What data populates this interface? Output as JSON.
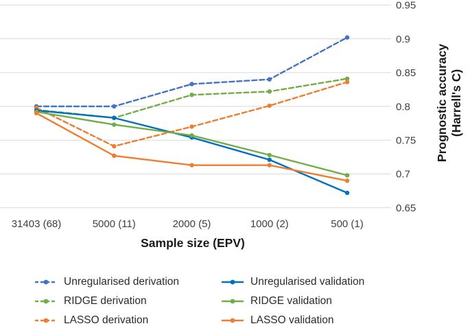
{
  "figure": {
    "background": "#ffffff"
  },
  "chart_data": {
    "type": "line",
    "title": "",
    "xlabel": "Sample size (EPV)",
    "ylabel_line1": "Prognostic accuracy",
    "ylabel_line2": "(Harrell's C)",
    "categories": [
      "31403 (68)",
      "5000 (11)",
      "2000 (5)",
      "1000 (2)",
      "500 (1)"
    ],
    "series": [
      {
        "name": "Unregularised derivation",
        "style": "dashed",
        "color": "#4472C4",
        "values": [
          0.8,
          0.8,
          0.833,
          0.84,
          0.902
        ]
      },
      {
        "name": "RIDGE derivation",
        "style": "dashed",
        "color": "#70AD47",
        "values": [
          0.795,
          0.783,
          0.817,
          0.822,
          0.841
        ]
      },
      {
        "name": "LASSO derivation",
        "style": "dashed",
        "color": "#ED7D31",
        "values": [
          0.798,
          0.741,
          0.77,
          0.801,
          0.836
        ]
      },
      {
        "name": "Unregularised validation",
        "style": "solid",
        "color": "#0070C0",
        "values": [
          0.794,
          0.783,
          0.754,
          0.721,
          0.672
        ]
      },
      {
        "name": "RIDGE validation",
        "style": "solid",
        "color": "#70AD47",
        "values": [
          0.792,
          0.773,
          0.757,
          0.728,
          0.698
        ]
      },
      {
        "name": "LASSO validation",
        "style": "solid",
        "color": "#ED7D31",
        "values": [
          0.79,
          0.727,
          0.713,
          0.713,
          0.69
        ]
      }
    ],
    "ylim": [
      0.65,
      0.95
    ],
    "ytick_labels": [
      "0.95",
      "0.9",
      "0.85",
      "0.8",
      "0.75",
      "0.7",
      "0.65"
    ],
    "ytick_values": [
      0.95,
      0.9,
      0.85,
      0.8,
      0.75,
      0.7,
      0.65
    ],
    "grid": true,
    "legend_position": "bottom"
  },
  "colors": {
    "gridline": "#D9D9D9",
    "tick_text": "#3f3f3f",
    "title_text": "#1a1a1a"
  }
}
